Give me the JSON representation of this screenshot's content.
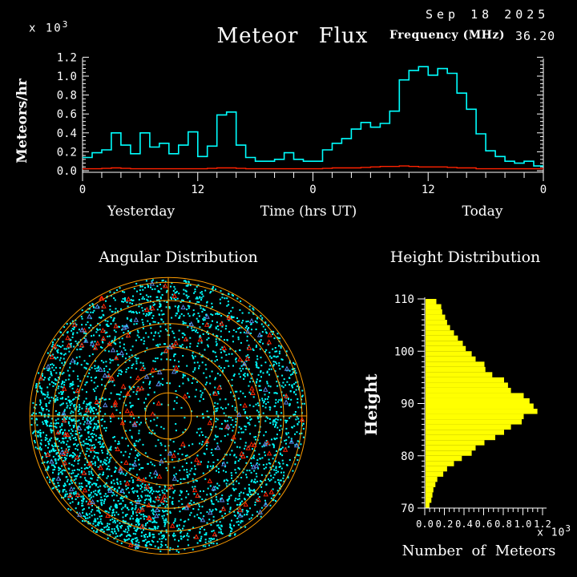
{
  "header": {
    "title": "Meteor Flux",
    "date": "Sep 18 2025",
    "frequency_label": "Frequency (MHz)",
    "frequency_value": "36.20"
  },
  "flux_labels": {
    "scale": "x 10",
    "scale_exp": "3",
    "ylabel": "Meteors/hr",
    "xlabel": "Time (hrs UT)",
    "yesterday": "Yesterday",
    "today": "Today"
  },
  "angular_labels": {
    "title": "Angular Distribution"
  },
  "height_labels": {
    "title": "Height Distribution",
    "ylabel": "Height",
    "xlabel": "Number of Meteors",
    "scale": "x 10",
    "scale_exp": "3"
  },
  "colors": {
    "background": "#000000",
    "axis": "#FFFFFF",
    "flux_line": "#00FFFF",
    "baseline_line": "#FF2200",
    "polar_grid": "#FF9D00",
    "echo_dots": "#00FFFF",
    "red_markers": "#FF2200",
    "blue_markers": "#5A87E8",
    "bars": "#FFFF00",
    "text": "#FFFFFF"
  },
  "chart_data": [
    {
      "id": "flux",
      "type": "step-line",
      "title": "Meteor Flux",
      "ylabel": "Meteors/hr",
      "y_scale": "x 10^3",
      "ylim": [
        0,
        1.2
      ],
      "ytick_labels": [
        "0.0",
        "0.2",
        "0.4",
        "0.6",
        "0.8",
        "1.0",
        "1.2"
      ],
      "xlabel": "Time (hrs UT)",
      "x_span_hours": 48,
      "xtick_hours": [
        0,
        12,
        24,
        36,
        48
      ],
      "xtick_labels": [
        "0",
        "12",
        "0",
        "12",
        "0"
      ],
      "day_labels": [
        "Yesterday",
        "Today"
      ],
      "grid": false,
      "legend": "none",
      "series": [
        {
          "name": "meteor-flux",
          "color": "#00FFFF",
          "values": [
            0.14,
            0.19,
            0.22,
            0.4,
            0.27,
            0.18,
            0.4,
            0.25,
            0.29,
            0.18,
            0.27,
            0.41,
            0.15,
            0.26,
            0.59,
            0.62,
            0.27,
            0.14,
            0.1,
            0.1,
            0.12,
            0.19,
            0.12,
            0.1,
            0.1,
            0.22,
            0.29,
            0.34,
            0.44,
            0.51,
            0.46,
            0.5,
            0.63,
            0.96,
            1.06,
            1.1,
            1.01,
            1.08,
            1.03,
            0.82,
            0.65,
            0.39,
            0.21,
            0.15,
            0.1,
            0.08,
            0.1,
            0.05
          ]
        },
        {
          "name": "background-level",
          "color": "#FF2200",
          "values": [
            0.02,
            0.02,
            0.025,
            0.03,
            0.025,
            0.02,
            0.02,
            0.02,
            0.02,
            0.02,
            0.02,
            0.02,
            0.02,
            0.025,
            0.03,
            0.03,
            0.025,
            0.02,
            0.02,
            0.02,
            0.02,
            0.02,
            0.02,
            0.02,
            0.02,
            0.025,
            0.03,
            0.03,
            0.03,
            0.035,
            0.04,
            0.045,
            0.045,
            0.05,
            0.045,
            0.04,
            0.04,
            0.04,
            0.035,
            0.03,
            0.03,
            0.02,
            0.02,
            0.02,
            0.02,
            0.02,
            0.02,
            0.02
          ]
        }
      ]
    },
    {
      "id": "angular",
      "type": "polar-scatter",
      "title": "Angular Distribution",
      "grid_color": "#FF9D00",
      "rings": 6,
      "outer_double_ring": true,
      "render_seed": 7,
      "markers": [
        {
          "name": "meteor-echoes",
          "shape": "square-dot",
          "color": "#00FFFF",
          "count": 3600,
          "distribution": "sparse at center, dense outer annulus to rim"
        },
        {
          "name": "red-echo-markers",
          "shape": "triangle",
          "color": "#FF2200",
          "count": 135
        },
        {
          "name": "blue-echo-markers",
          "shape": "triangle",
          "color": "#5A87E8",
          "count": 70
        }
      ]
    },
    {
      "id": "height",
      "type": "bar-horizontal",
      "title": "Height Distribution",
      "ylabel": "Height",
      "xlabel": "Number of Meteors",
      "x_scale": "x 10^3",
      "bar_color": "#FFFF00",
      "ylim": [
        70,
        110
      ],
      "ytick_labels": [
        "70",
        "80",
        "90",
        "100",
        "110"
      ],
      "xlim": [
        0,
        1.2
      ],
      "xtick_labels": [
        "0.0",
        "0.2",
        "0.4",
        "0.6",
        "0.8",
        "1.0",
        "1.2"
      ],
      "bin_start": 70,
      "bin_size": 1,
      "values": [
        0.04,
        0.06,
        0.07,
        0.08,
        0.1,
        0.12,
        0.18,
        0.22,
        0.29,
        0.37,
        0.47,
        0.51,
        0.6,
        0.71,
        0.8,
        0.87,
        0.98,
        1.0,
        1.14,
        1.1,
        1.06,
        1.0,
        0.87,
        0.84,
        0.8,
        0.68,
        0.61,
        0.6,
        0.51,
        0.47,
        0.41,
        0.38,
        0.33,
        0.29,
        0.25,
        0.22,
        0.2,
        0.17,
        0.16,
        0.11
      ]
    }
  ]
}
